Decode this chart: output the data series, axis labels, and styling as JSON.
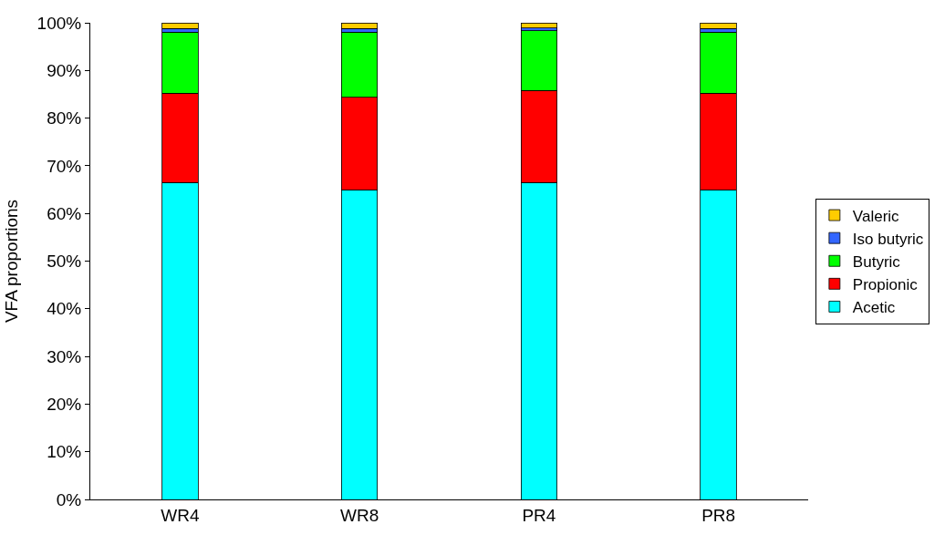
{
  "chart_data": {
    "type": "bar",
    "stacked": true,
    "ylabel": "VFA proportions",
    "categories": [
      "WR4",
      "WR8",
      "PR4",
      "PR8"
    ],
    "series": [
      {
        "name": "Acetic",
        "color": "#00ffff",
        "values": [
          66.5,
          65.0,
          66.5,
          65.0
        ]
      },
      {
        "name": "Propionic",
        "color": "#ff0000",
        "values": [
          18.7,
          19.4,
          19.3,
          20.2
        ]
      },
      {
        "name": "Butyric",
        "color": "#00ff00",
        "values": [
          12.8,
          13.6,
          12.5,
          12.8
        ]
      },
      {
        "name": "Iso butyric",
        "color": "#3366ff",
        "values": [
          0.8,
          0.8,
          0.6,
          0.8
        ]
      },
      {
        "name": "Valeric",
        "color": "#ffcc00",
        "values": [
          1.2,
          1.2,
          1.1,
          1.2
        ]
      }
    ],
    "ylim": [
      0,
      100
    ],
    "yticks": [
      {
        "value": 0,
        "label": "0%"
      },
      {
        "value": 10,
        "label": "10%"
      },
      {
        "value": 20,
        "label": "20%"
      },
      {
        "value": 30,
        "label": "30%"
      },
      {
        "value": 40,
        "label": "40%"
      },
      {
        "value": 50,
        "label": "50%"
      },
      {
        "value": 60,
        "label": "60%"
      },
      {
        "value": 70,
        "label": "70%"
      },
      {
        "value": 80,
        "label": "80%"
      },
      {
        "value": 90,
        "label": "90%"
      },
      {
        "value": 100,
        "label": "100%"
      }
    ],
    "grid": false,
    "legend": "right"
  }
}
